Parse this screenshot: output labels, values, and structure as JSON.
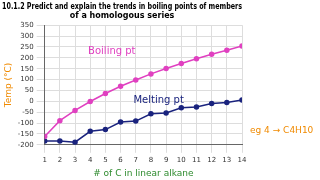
{
  "chart_data": {
    "type": "line",
    "title": [
      "10.1.2 Predict and explain the trends in boiling points of members",
      "of a homologous series"
    ],
    "x_label": "# of C in linear alkane",
    "y_label": "Temp (°C)",
    "annotations": [
      "Boiling pt",
      "Melting pt",
      "eg 4 → C4H10"
    ],
    "x": [
      1,
      2,
      3,
      4,
      5,
      6,
      7,
      8,
      9,
      10,
      11,
      12,
      13,
      14
    ],
    "series": [
      {
        "name": "Boiling pt",
        "color": "#e040c0",
        "marker": "circle",
        "values": [
          -162,
          -89,
          -42,
          -1,
          36,
          69,
          98,
          126,
          151,
          174,
          196,
          216,
          235,
          254
        ]
      },
      {
        "name": "Melting pt",
        "color": "#1a237e",
        "marker": "circle",
        "values": [
          -182,
          -183,
          -188,
          -138,
          -130,
          -95,
          -91,
          -57,
          -54,
          -30,
          -26,
          -10,
          -5,
          6
        ]
      }
    ],
    "xlim": [
      1,
      14
    ],
    "xticks": [
      1,
      2,
      3,
      4,
      5,
      6,
      7,
      8,
      9,
      10,
      11,
      12,
      13,
      14
    ],
    "ylim": [
      -200,
      350
    ],
    "yticks": [
      -200,
      -150,
      -100,
      -50,
      0,
      50,
      100,
      150,
      200,
      250,
      300,
      350
    ],
    "grid": true
  }
}
